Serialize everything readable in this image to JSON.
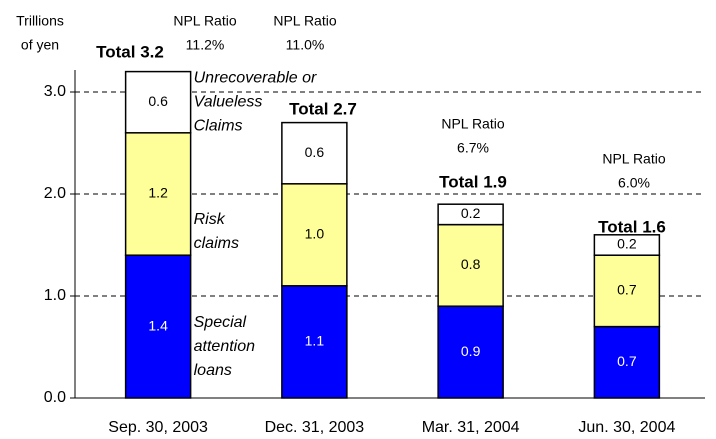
{
  "chart_data": {
    "type": "stacked_bar",
    "ylabel": [
      "Trillions",
      "of yen"
    ],
    "categories": [
      "Sep. 30, 2003",
      "Dec. 31, 2003",
      "Mar. 31, 2004",
      "Jun. 30, 2004"
    ],
    "series": [
      {
        "name": [
          "Special",
          "attention",
          "loans"
        ],
        "color": "#0000ff",
        "label_color": "#ffffff",
        "values": [
          1.4,
          1.1,
          0.9,
          0.7
        ],
        "value_labels": [
          "1.4",
          "1.1",
          "0.9",
          "0.7"
        ]
      },
      {
        "name": [
          "Risk",
          "claims"
        ],
        "color": "#ffff99",
        "label_color": "#000000",
        "values": [
          1.2,
          1.0,
          0.8,
          0.7
        ],
        "value_labels": [
          "1.2",
          "1.0",
          "0.8",
          "0.7"
        ]
      },
      {
        "name": [
          "Unrecoverable or",
          "Valueless",
          "Claims"
        ],
        "color": "#ffffff",
        "label_color": "#000000",
        "values": [
          0.6,
          0.6,
          0.2,
          0.2
        ],
        "value_labels": [
          "0.6",
          "0.6",
          "0.2",
          "0.2"
        ]
      }
    ],
    "totals": {
      "values": [
        3.2,
        2.7,
        1.9,
        1.6
      ],
      "value_labels": [
        "Total 3.2",
        "Total 2.7",
        "Total 1.9",
        "Total 1.6"
      ]
    },
    "npl_ratio": {
      "label": "NPL Ratio",
      "values": [
        11.2,
        11.0,
        6.7,
        6.0
      ],
      "value_labels": [
        "11.2%",
        "11.0%",
        "6.7%",
        "6.0%"
      ]
    },
    "ylim": [
      0,
      3.2
    ],
    "yticks": [
      {
        "value": 0,
        "label": "0.0"
      },
      {
        "value": 1,
        "label": "1.0"
      },
      {
        "value": 2,
        "label": "2.0"
      },
      {
        "value": 3,
        "label": "3.0"
      }
    ],
    "grid": true
  }
}
